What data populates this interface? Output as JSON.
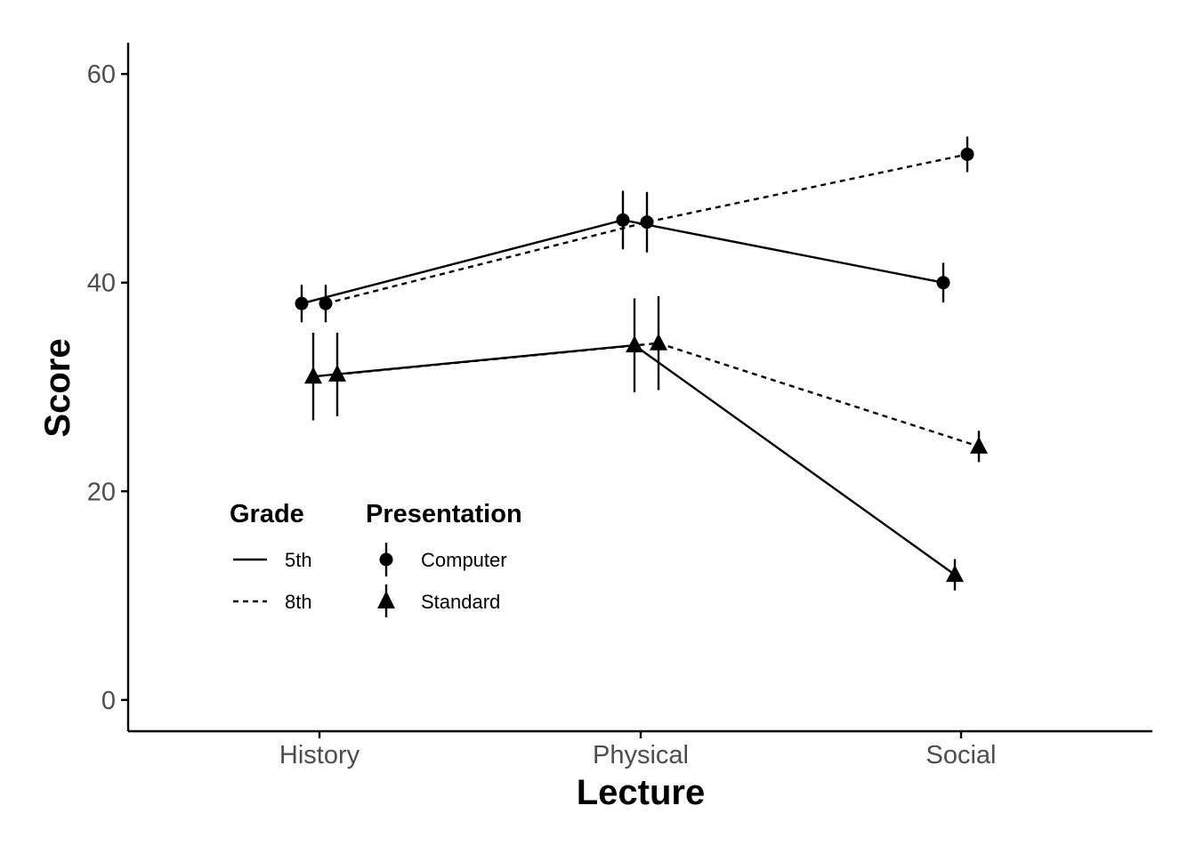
{
  "chart_data": {
    "type": "line",
    "title": "",
    "xlabel": "Lecture",
    "ylabel": "Score",
    "categories": [
      "History",
      "Physical",
      "Social"
    ],
    "ylim": [
      -3,
      63
    ],
    "yticks": [
      0,
      20,
      40,
      60
    ],
    "grid": false,
    "legend_placement": "bottom-left inside",
    "legend": {
      "linetype_title": "Grade",
      "linetype_entries": [
        {
          "label": "5th",
          "style": "solid"
        },
        {
          "label": "8th",
          "style": "dashed"
        }
      ],
      "shape_title": "Presentation",
      "shape_entries": [
        {
          "label": "Computer",
          "shape": "circle"
        },
        {
          "label": "Standard",
          "shape": "triangle"
        }
      ]
    },
    "series": [
      {
        "grade": "5th",
        "presentation": "Computer",
        "linetype": "solid",
        "shape": "circle",
        "values": [
          38.0,
          46.0,
          40.0
        ],
        "errors": [
          1.8,
          2.8,
          1.9
        ]
      },
      {
        "grade": "8th",
        "presentation": "Computer",
        "linetype": "dashed",
        "shape": "circle",
        "values": [
          38.0,
          45.8,
          52.3
        ],
        "errors": [
          1.8,
          2.9,
          1.7
        ]
      },
      {
        "grade": "5th",
        "presentation": "Standard",
        "linetype": "solid",
        "shape": "triangle",
        "values": [
          31.0,
          34.0,
          12.0
        ],
        "errors": [
          4.2,
          4.5,
          1.5
        ]
      },
      {
        "grade": "8th",
        "presentation": "Standard",
        "linetype": "dashed",
        "shape": "triangle",
        "values": [
          31.2,
          34.2,
          24.3
        ],
        "errors": [
          4.0,
          4.5,
          1.5
        ]
      }
    ],
    "colors": {
      "ink": "#000000",
      "tick_text": "#4d4d4d",
      "background": "#ffffff"
    }
  }
}
